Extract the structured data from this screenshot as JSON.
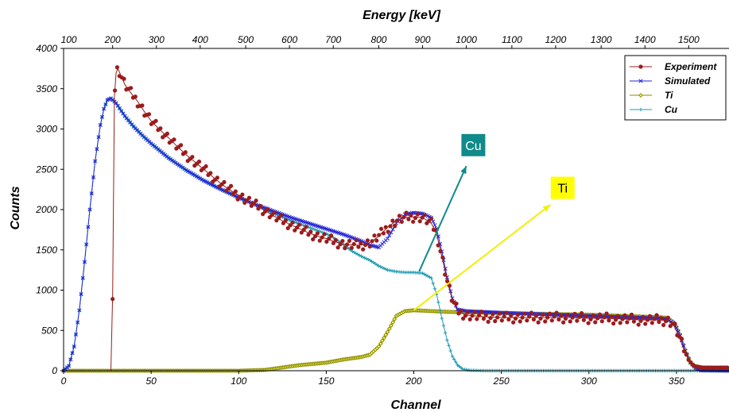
{
  "chart_data": {
    "type": "line",
    "xlabel": "Channel",
    "ylabel": "Counts",
    "x2label": "Energy [keV]",
    "xlim": [
      0,
      380
    ],
    "ylim": [
      0,
      4000
    ],
    "x_ticks": [
      "0",
      "50",
      "100",
      "150",
      "200",
      "250",
      "300",
      "350"
    ],
    "y_ticks": [
      "0",
      "500",
      "1000",
      "1500",
      "2000",
      "2500",
      "3000",
      "3500",
      "4000"
    ],
    "energy_ticks": [
      {
        "label": "200",
        "channel": 28
      },
      {
        "label": "300",
        "channel": 53
      },
      {
        "label": "400",
        "channel": 78
      },
      {
        "label": "500",
        "channel": 104
      },
      {
        "label": "600",
        "channel": 129
      },
      {
        "label": "700",
        "channel": 154
      },
      {
        "label": "800",
        "channel": 180
      },
      {
        "label": "900",
        "channel": 205
      },
      {
        "label": "1000",
        "channel": 230
      },
      {
        "label": "1100",
        "channel": 256
      },
      {
        "label": "1200",
        "channel": 281
      },
      {
        "label": "1300",
        "channel": 307
      },
      {
        "label": "1400",
        "channel": 332
      },
      {
        "label": "1500",
        "channel": 357
      }
    ],
    "energy_tick_first": "100",
    "legend_position": "top-right",
    "grid": false,
    "series": [
      {
        "name": "Experiment",
        "color": "#9b1c1c",
        "marker": "circle",
        "points": [
          [
            25,
            0
          ],
          [
            27,
            0
          ],
          [
            28,
            950
          ],
          [
            29,
            3400
          ],
          [
            30,
            3700
          ],
          [
            31,
            3750
          ],
          [
            33,
            3650
          ],
          [
            35,
            3550
          ],
          [
            38,
            3460
          ],
          [
            42,
            3350
          ],
          [
            46,
            3220
          ],
          [
            50,
            3100
          ],
          [
            55,
            2990
          ],
          [
            60,
            2890
          ],
          [
            65,
            2780
          ],
          [
            70,
            2680
          ],
          [
            75,
            2590
          ],
          [
            80,
            2500
          ],
          [
            85,
            2410
          ],
          [
            90,
            2320
          ],
          [
            95,
            2240
          ],
          [
            100,
            2180
          ],
          [
            105,
            2110
          ],
          [
            110,
            2050
          ],
          [
            115,
            1990
          ],
          [
            120,
            1920
          ],
          [
            125,
            1860
          ],
          [
            130,
            1810
          ],
          [
            135,
            1760
          ],
          [
            140,
            1710
          ],
          [
            145,
            1670
          ],
          [
            150,
            1640
          ],
          [
            155,
            1600
          ],
          [
            160,
            1570
          ],
          [
            165,
            1560
          ],
          [
            170,
            1560
          ],
          [
            175,
            1590
          ],
          [
            180,
            1670
          ],
          [
            185,
            1780
          ],
          [
            190,
            1860
          ],
          [
            195,
            1900
          ],
          [
            200,
            1910
          ],
          [
            205,
            1900
          ],
          [
            210,
            1830
          ],
          [
            213,
            1700
          ],
          [
            216,
            1420
          ],
          [
            219,
            1120
          ],
          [
            222,
            880
          ],
          [
            225,
            740
          ],
          [
            230,
            690
          ],
          [
            240,
            670
          ],
          [
            250,
            660
          ],
          [
            260,
            660
          ],
          [
            270,
            660
          ],
          [
            280,
            660
          ],
          [
            290,
            660
          ],
          [
            300,
            650
          ],
          [
            310,
            650
          ],
          [
            320,
            640
          ],
          [
            330,
            630
          ],
          [
            340,
            630
          ],
          [
            345,
            625
          ],
          [
            348,
            580
          ],
          [
            351,
            450
          ],
          [
            354,
            280
          ],
          [
            357,
            130
          ],
          [
            360,
            60
          ],
          [
            365,
            40
          ],
          [
            370,
            40
          ],
          [
            380,
            40
          ]
        ]
      },
      {
        "name": "Simulated",
        "color": "#2424d6",
        "marker": "x",
        "points": [
          [
            0,
            0
          ],
          [
            3,
            60
          ],
          [
            6,
            300
          ],
          [
            9,
            750
          ],
          [
            12,
            1350
          ],
          [
            15,
            2000
          ],
          [
            18,
            2600
          ],
          [
            21,
            3050
          ],
          [
            23,
            3250
          ],
          [
            25,
            3360
          ],
          [
            27,
            3380
          ],
          [
            30,
            3320
          ],
          [
            35,
            3160
          ],
          [
            40,
            3030
          ],
          [
            45,
            2920
          ],
          [
            50,
            2820
          ],
          [
            60,
            2640
          ],
          [
            70,
            2490
          ],
          [
            80,
            2360
          ],
          [
            90,
            2250
          ],
          [
            100,
            2150
          ],
          [
            110,
            2060
          ],
          [
            120,
            1980
          ],
          [
            130,
            1900
          ],
          [
            140,
            1830
          ],
          [
            150,
            1760
          ],
          [
            160,
            1690
          ],
          [
            170,
            1610
          ],
          [
            175,
            1560
          ],
          [
            180,
            1530
          ],
          [
            185,
            1640
          ],
          [
            190,
            1830
          ],
          [
            195,
            1940
          ],
          [
            200,
            1960
          ],
          [
            205,
            1950
          ],
          [
            210,
            1900
          ],
          [
            213,
            1760
          ],
          [
            216,
            1480
          ],
          [
            219,
            1160
          ],
          [
            222,
            900
          ],
          [
            225,
            760
          ],
          [
            230,
            740
          ],
          [
            250,
            720
          ],
          [
            300,
            680
          ],
          [
            340,
            650
          ],
          [
            345,
            640
          ],
          [
            349,
            580
          ],
          [
            352,
            440
          ],
          [
            355,
            250
          ],
          [
            358,
            100
          ],
          [
            361,
            30
          ],
          [
            364,
            5
          ],
          [
            380,
            0
          ]
        ]
      },
      {
        "name": "Ti",
        "color": "#8a8a00",
        "marker": "diamond",
        "points": [
          [
            0,
            0
          ],
          [
            100,
            0
          ],
          [
            115,
            10
          ],
          [
            125,
            40
          ],
          [
            135,
            70
          ],
          [
            145,
            90
          ],
          [
            150,
            100
          ],
          [
            160,
            140
          ],
          [
            170,
            170
          ],
          [
            175,
            200
          ],
          [
            180,
            300
          ],
          [
            185,
            480
          ],
          [
            190,
            680
          ],
          [
            195,
            740
          ],
          [
            200,
            750
          ],
          [
            210,
            740
          ],
          [
            220,
            730
          ],
          [
            250,
            715
          ],
          [
            300,
            695
          ],
          [
            340,
            665
          ],
          [
            345,
            655
          ],
          [
            349,
            590
          ],
          [
            352,
            450
          ],
          [
            355,
            260
          ],
          [
            358,
            100
          ],
          [
            361,
            30
          ],
          [
            364,
            5
          ],
          [
            380,
            0
          ]
        ]
      },
      {
        "name": "Cu",
        "color": "#1f9bb3",
        "marker": "plus",
        "points": [
          [
            0,
            0
          ],
          [
            3,
            60
          ],
          [
            6,
            300
          ],
          [
            9,
            750
          ],
          [
            12,
            1350
          ],
          [
            15,
            2000
          ],
          [
            18,
            2600
          ],
          [
            21,
            3050
          ],
          [
            23,
            3250
          ],
          [
            25,
            3360
          ],
          [
            27,
            3380
          ],
          [
            30,
            3320
          ],
          [
            35,
            3160
          ],
          [
            40,
            3030
          ],
          [
            45,
            2920
          ],
          [
            50,
            2820
          ],
          [
            60,
            2640
          ],
          [
            70,
            2490
          ],
          [
            80,
            2360
          ],
          [
            90,
            2250
          ],
          [
            100,
            2150
          ],
          [
            110,
            2050
          ],
          [
            120,
            1950
          ],
          [
            130,
            1860
          ],
          [
            140,
            1780
          ],
          [
            150,
            1700
          ],
          [
            155,
            1640
          ],
          [
            160,
            1560
          ],
          [
            165,
            1480
          ],
          [
            170,
            1420
          ],
          [
            175,
            1370
          ],
          [
            180,
            1300
          ],
          [
            185,
            1250
          ],
          [
            190,
            1230
          ],
          [
            195,
            1220
          ],
          [
            200,
            1220
          ],
          [
            205,
            1210
          ],
          [
            210,
            1150
          ],
          [
            213,
            950
          ],
          [
            216,
            650
          ],
          [
            219,
            380
          ],
          [
            222,
            180
          ],
          [
            225,
            70
          ],
          [
            228,
            20
          ],
          [
            232,
            5
          ],
          [
            240,
            0
          ],
          [
            380,
            0
          ]
        ]
      }
    ],
    "annotations": [
      {
        "label": "Cu",
        "bg": "#108a8a",
        "fg": "#ffffff",
        "arrow_color": "#108a8a",
        "from": [
          203,
          1230
        ],
        "to": [
          230,
          2540
        ],
        "box_at": [
          234,
          2800
        ]
      },
      {
        "label": "Ti",
        "bg": "#ffff00",
        "fg": "#000000",
        "arrow_color": "#f0f000",
        "from": [
          200,
          750
        ],
        "to": [
          278,
          2060
        ],
        "box_at": [
          285,
          2270
        ]
      }
    ]
  }
}
